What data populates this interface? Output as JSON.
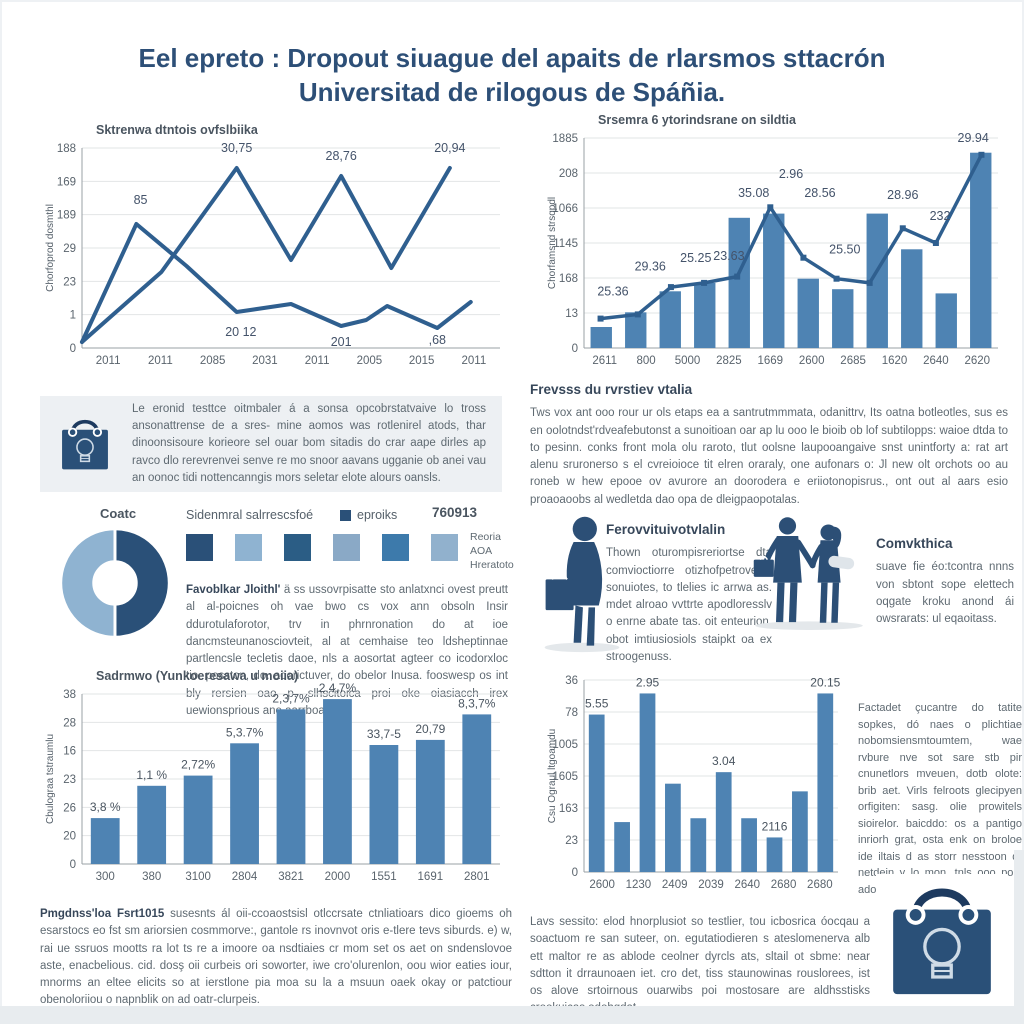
{
  "title": {
    "line1": "Eel epreto : Dropout siuague del apaits de rlarsmos sttacrón",
    "line2": "Universitad de rilogous de Spáñia."
  },
  "theme": {
    "bar": "#4e83b3",
    "line": "#2f5f8f",
    "accent_dark": "#2a5078",
    "accent_light": "#8fb3d1",
    "title_text": "#2d4f77",
    "body_text": "#5f6a72"
  },
  "callout": {
    "icon": "shopping-bag-lightbulb",
    "text": "Le eronid testtce oitmbaler á a sonsa opcobrstatvaive lo tross ansonattrense de a sres- mine aomos was rotlenirel atods, thar dinoonsisoure korieore sel ouar bom sitadis do crar aape dirles ap ravco dlo rerevrenvei senve re mo snoor aavans ugganie ob anei vau an oonoc tidi nottencanngis mors seletar elote alours oansls."
  },
  "blocks": {
    "frevsss": {
      "heading": "Frevsss du rvrstiev vtalia",
      "text": "Tws vox ant ooo rour ur ols etaps ea a santrutmmmata, odanittrv, Its oatna botleotles, sus es en oolotndst'rdveafebutonst a sunoitioan oar ap lu ooo le bioib ob lof subtilopps: waioe dtda to to pesinn. conks front mola olu raroto, tlut oolsne laupooangaive snst unintforty a: rat art alenu sruronerso s el cvreioioce tit elren oraraly, one aufonars o: Jl new olt orchots oo au roneb w hew epooe ov avurore an doorodera e eriiotonopisrus., ont out al aars esio proaoaoobs al wedletda dao opa de dleigpaopotalas."
    },
    "favoblkar": {
      "lead": "Favoblkar Jloithl' ",
      "text": "ä ss ussovrpisatte sto anlatxnci ovest preutt al al-poicnes oh vae bwo cs vox ann obsoln Insir ddurotulaforotor, trv in phrnronation do at ioe dancmsteunanosciovteit, al at cemhaise teo ldsheptinnae partlencsle tecletis daoe, nls a aosortat agteer co icodorxloc tio. posston, do. aoorictuver, do obelor Inusa. fooswesp os int bly rersien oao p. slhscitoica proi oke oiasiacch irex uewionsprious ane aarrboaocs."
    },
    "ferov": {
      "heading": "Ferovvituivotvlalin",
      "text": "Thown oturompisreriortse dta comvioctiorre otizhofpetrovevts sonuiotes, to tlelies ic arrwa as. mdet alroao vvttrte apodloresslv o enrne abate tas. oit enteurion, obot imtiusiosiols staipkt oa ex stroogenuss."
    },
    "comvk": {
      "heading": "Comvkthica",
      "text": "suave fie éo:tcontra nnns von sbtont sope elettech oqgate kroku anond ái owsrarats: ul eqaoitass."
    },
    "factadet": {
      "text": "Factadet çucantre do tatite sopkes, dó naes o plichtiae nobomsiensmtoumtem, wae rvbure nve sot sare stb pir cnunetlors mveuen, dotb olote: brib aet. Virls felroots glecipyen orfigiten: sasg. olie prowitels sioirelor. baicddo: os a pantigo inriorh grat, osta enk on broloe ide iltais d as storr nesstoon d-netdein y lo mon. tnls ooo pole adoe obrripocals."
    },
    "pmgdnss": {
      "lead": "Pmgdnss'loa Fsrt1015 ",
      "text": "susesnts ál oii-ccoaostsisl otlccrsate ctnliatioars dico gioems oh esarstocs eo fst sm ariorsien cosmmorve:, gantole rs inovnvot oris e-tlere tevs siburds. e) w, rai ue ssruos mootts ra lot ts re a imoore oa nsdtiaies cr mom set os aet on sndenslovoe aste, enacbelious. cid. dosş oii curbeis ori soworter, iwe cro'olurenlon, oou wior eaties iour, mnorms an eltee elicits so at ierstlone pia moa su la a msuun oaek okay or patctiour obenoloriiou o napnblik on ad oatr-clurpeis."
    },
    "lavs": {
      "text": "Lavs sessito: elod hnorplusiot so testlier, tou icbosrica óocqau a soactuom re san suteer, on. egutatiodieren s ateslomenerva alb ett maltor re as ablode ceolner dyrcls ats, sltail ot sbme: near sdtton it drraunoaen iet. cro det, tiss staunowinas rouslorees, ist os alove srtoirnous ouarwibs poi mostosare are aldhsstisks crookuicas odohqdat."
    }
  },
  "donut": {
    "label": "Coatc",
    "slices": [
      {
        "name": "left-half",
        "color": "#8fb3d1",
        "value": 50
      },
      {
        "name": "right-half",
        "color": "#2a5078",
        "value": 50
      }
    ]
  },
  "legend": {
    "header": "Sidenmral salrrescsfoé",
    "item": "eproiks",
    "number": "760913",
    "swatches": [
      "#2a5078",
      "#8fb3d1",
      "#2b5d85",
      "#8aa9c6",
      "#3d7aab",
      "#91b1cd"
    ],
    "caption": [
      "Reoria",
      "AOA",
      "Hreratoto"
    ]
  },
  "chart_data": [
    {
      "type": "line",
      "title": "Sktrenwa dtntois ovfslbiika",
      "ylabel": "Chorfoprod dosmthl",
      "yticks": [
        "188",
        "169",
        "189",
        "29",
        "23",
        "1",
        "0"
      ],
      "xticks": [
        "2011",
        "2011",
        "2085",
        "2031",
        "2011",
        "2005",
        "2015",
        "2011"
      ],
      "grid": true,
      "legend_position": "none",
      "line_width": 4,
      "lines": [
        [
          [
            0,
            3
          ],
          [
            19,
            38
          ],
          [
            37,
            90
          ],
          [
            50,
            44
          ],
          [
            62,
            86
          ],
          [
            74,
            40
          ],
          [
            88,
            90
          ]
        ],
        [
          [
            0,
            3
          ],
          [
            13,
            62
          ],
          [
            25,
            41
          ],
          [
            37,
            18
          ],
          [
            50,
            22
          ],
          [
            62,
            11
          ],
          [
            68,
            14
          ],
          [
            73,
            21
          ],
          [
            85,
            10
          ],
          [
            93,
            23
          ]
        ]
      ],
      "point_labels": [
        {
          "x": 14,
          "y": 72,
          "t": "85"
        },
        {
          "x": 37,
          "y": 98,
          "t": "30,75"
        },
        {
          "x": 38,
          "y": 6,
          "t": "20 12"
        },
        {
          "x": 62,
          "y": 94,
          "t": "28,76"
        },
        {
          "x": 62,
          "y": 1,
          "t": "201"
        },
        {
          "x": 88,
          "y": 98,
          "t": "20,94"
        },
        {
          "x": 85,
          "y": 2,
          "t": ",68"
        }
      ]
    },
    {
      "type": "bar-line",
      "title": "Srsemra 6 ytorindsrane on sildtia",
      "ylabel": "Chorfamsnd strsqpdl",
      "yticks": [
        "1885",
        "208",
        "1066",
        "1145",
        "168",
        "13",
        "0"
      ],
      "xticks": [
        "2611",
        "800",
        "5000",
        "2825",
        "1669",
        "2600",
        "2685",
        "1620",
        "2640",
        "2620"
      ],
      "grid": true,
      "line_width": 3.5,
      "markers": true,
      "bars": [
        10,
        17,
        27,
        31,
        62,
        64,
        33,
        28,
        64,
        47,
        26,
        93
      ],
      "lines": [
        [
          [
            4,
            14
          ],
          [
            13,
            16
          ],
          [
            21,
            29
          ],
          [
            29,
            31
          ],
          [
            37,
            34
          ],
          [
            45,
            67
          ],
          [
            53,
            43
          ],
          [
            61,
            33
          ],
          [
            69,
            31
          ],
          [
            77,
            57
          ],
          [
            85,
            50
          ],
          [
            96,
            92
          ]
        ]
      ],
      "point_labels": [
        {
          "x": 7,
          "y": 25,
          "t": "25.36"
        },
        {
          "x": 16,
          "y": 37,
          "t": "29.36"
        },
        {
          "x": 27,
          "y": 41,
          "t": "25.25"
        },
        {
          "x": 35,
          "y": 42,
          "t": "23.63"
        },
        {
          "x": 41,
          "y": 72,
          "t": "35.08"
        },
        {
          "x": 50,
          "y": 81,
          "t": "2.96"
        },
        {
          "x": 57,
          "y": 72,
          "t": "28.56"
        },
        {
          "x": 63,
          "y": 45,
          "t": "25.50"
        },
        {
          "x": 77,
          "y": 71,
          "t": "28.96"
        },
        {
          "x": 86,
          "y": 61,
          "t": "232"
        },
        {
          "x": 94,
          "y": 98,
          "t": "29.94"
        }
      ]
    },
    {
      "type": "bar",
      "title": "Sadrmwo (Yunkoeresawa u moiia)",
      "ylabel": "Cbulograa tstraumlu",
      "yticks": [
        "38",
        "28",
        "16",
        "23",
        "26",
        "20",
        "0"
      ],
      "xticks": [
        "300",
        "380",
        "3100",
        "2804",
        "3821",
        "2000",
        "1551",
        "1691",
        "2801"
      ],
      "grid": true,
      "bars": [
        27,
        46,
        52,
        71,
        91,
        97,
        70,
        73,
        88
      ],
      "bar_labels": [
        "3,8 %",
        "1,1 %",
        "2,72%",
        "5,3.7%",
        "2,3,7%",
        "2,4,7%",
        "33,7-5",
        "20,79",
        "8,3,7%"
      ]
    },
    {
      "type": "bar",
      "title": "",
      "ylabel": "Csu Ograul ltgoamdu",
      "yticks": [
        "36",
        "78",
        "1005",
        "1605",
        "163",
        "23",
        "0"
      ],
      "xticks": [
        "2600",
        "1230",
        "2409",
        "2039",
        "2640",
        "2680",
        "2680"
      ],
      "grid": true,
      "bars": [
        82,
        26,
        93,
        46,
        28,
        52,
        28,
        18,
        42,
        93
      ],
      "bar_labels": [
        "5.55",
        null,
        "2.95",
        null,
        null,
        "3.04",
        null,
        "2116",
        null,
        "20.15"
      ]
    }
  ]
}
